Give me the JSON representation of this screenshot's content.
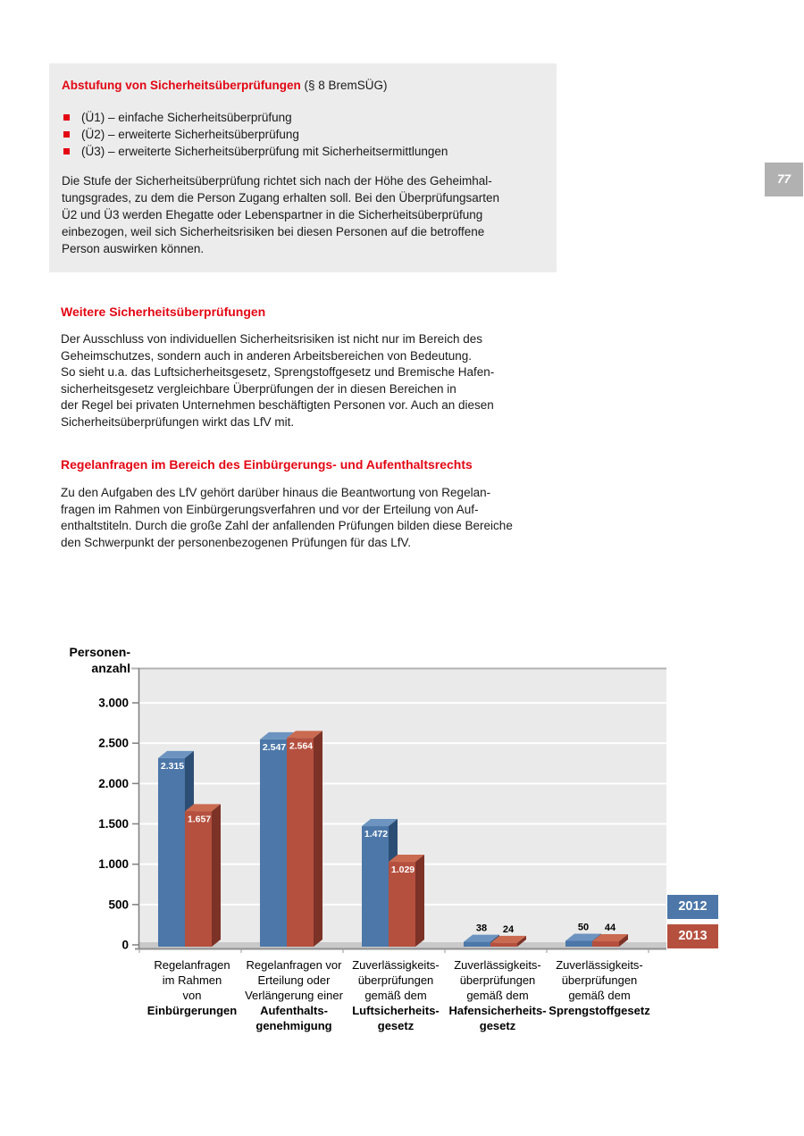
{
  "page_number": "77",
  "info_box": {
    "title_red": "Abstufung von Sicherheitsüberprüfungen",
    "title_rest": " (§ 8 BremSÜG)",
    "bullets": [
      "(Ü1) – einfache Sicherheitsüberprüfung",
      "(Ü2) – erweiterte Sicherheitsüberprüfung",
      "(Ü3) – erweiterte Sicherheitsüberprüfung mit Sicherheitsermittlungen"
    ],
    "paragraph": "Die Stufe der Sicherheitsüberprüfung richtet sich nach der Höhe des Geheimhal-\ntungsgrades, zu dem die Person Zugang erhalten soll. Bei den Überprüfungsarten\nÜ2 und Ü3 werden Ehegatte oder Lebenspartner in die Sicherheitsüberprüfung\neinbezogen, weil sich Sicherheitsrisiken bei diesen Personen auf die betroffene\nPerson auswirken können."
  },
  "sections": [
    {
      "heading": "Weitere Sicherheitsüberprüfungen",
      "paragraph": "Der Ausschluss von individuellen Sicherheitsrisiken ist nicht nur im Bereich des\nGeheimschutzes, sondern auch in anderen Arbeitsbereichen von Bedeutung.\nSo sieht u.a. das Luftsicherheitsgesetz, Sprengstoffgesetz und Bremische Hafen-\nsicherheitsgesetz vergleichbare Überprüfungen der in diesen Bereichen in\nder Regel bei privaten Unternehmen beschäftigten Personen vor. Auch an diesen\nSicherheitsüberprüfungen wirkt das LfV mit."
    },
    {
      "heading": "Regelanfragen im Bereich des Einbürgerungs- und Aufenthaltsrechts",
      "paragraph": "Zu den Aufgaben des LfV gehört darüber hinaus die Beantwortung von Regelan-\nfragen im Rahmen von Einbürgerungsverfahren und vor der Erteilung von Auf-\nenthaltstiteln. Durch die große Zahl der anfallenden Prüfungen bilden diese Bereiche\nden Schwerpunkt der personenbezogenen Prüfungen für das LfV."
    }
  ],
  "chart_data": {
    "type": "bar",
    "style": "3d-clustered-column",
    "title": "",
    "xlabel": "",
    "ylabel": "Personen-\nanzahl",
    "ylim": [
      0,
      3300
    ],
    "grid": true,
    "legend_position": "right",
    "plot_bg": "#eaeaea",
    "gridline_color": "#ffffff",
    "y_ticks": [
      {
        "value": 0,
        "label": "0"
      },
      {
        "value": 500,
        "label": "500"
      },
      {
        "value": 1000,
        "label": "1.000"
      },
      {
        "value": 1500,
        "label": "1.500"
      },
      {
        "value": 2000,
        "label": "2.000"
      },
      {
        "value": 2500,
        "label": "2.500"
      },
      {
        "value": 3000,
        "label": "3.000"
      }
    ],
    "categories": [
      {
        "lines": [
          "Regelanfragen",
          "im Rahmen",
          "von"
        ],
        "bold_lines": [
          "Einbürgerungen"
        ]
      },
      {
        "lines": [
          "Regelanfragen vor",
          "Erteilung oder",
          "Verlängerung einer"
        ],
        "bold_lines": [
          "Aufenthalts-",
          "genehmigung"
        ]
      },
      {
        "lines": [
          "Zuverlässigkeits-",
          "überprüfungen",
          "gemäß dem"
        ],
        "bold_lines": [
          "Luftsicherheits-",
          "gesetz"
        ]
      },
      {
        "lines": [
          "Zuverlässigkeits-",
          "überprüfungen",
          "gemäß dem"
        ],
        "bold_lines": [
          "Hafensicherheits-",
          "gesetz"
        ]
      },
      {
        "lines": [
          "Zuverlässigkeits-",
          "überprüfungen",
          "gemäß dem"
        ],
        "bold_lines": [
          "Sprengstoffgesetz"
        ]
      }
    ],
    "series": [
      {
        "name": "2012",
        "color": "#4c77a8",
        "top_color": "#6d94c0",
        "side_color": "#2d4e74",
        "values": [
          2315,
          2547,
          1472,
          38,
          50
        ],
        "display_values": [
          "2.315",
          "2.547",
          "1.472",
          "38",
          "50"
        ]
      },
      {
        "name": "2013",
        "color": "#b5503f",
        "top_color": "#ca6a50",
        "side_color": "#7c3226",
        "values": [
          1657,
          2564,
          1029,
          24,
          44
        ],
        "display_values": [
          "1.657",
          "2.564",
          "1.029",
          "24",
          "44"
        ]
      }
    ]
  }
}
